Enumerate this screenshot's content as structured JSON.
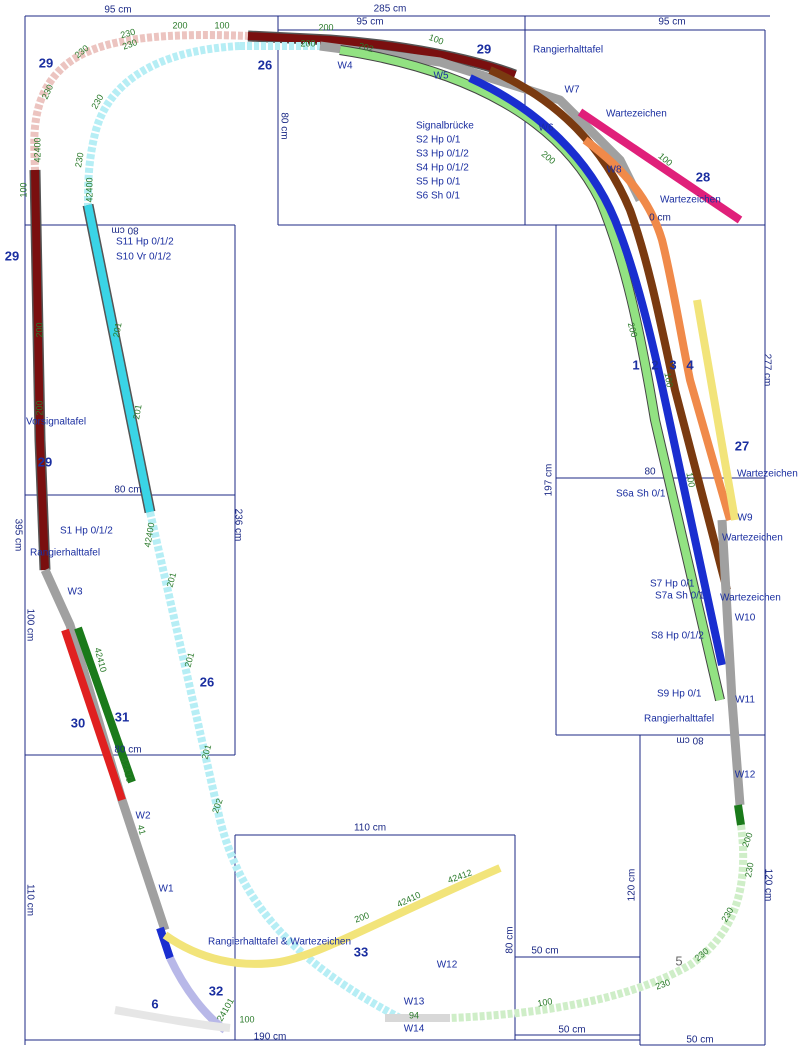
{
  "dimensions": [
    "95 cm",
    "285 cm",
    "95 cm",
    "95 cm",
    "80 cm",
    "80 cm",
    "80 cm",
    "395 cm",
    "100 cm",
    "80 cm",
    "236 cm",
    "110 cm",
    "110 cm",
    "190 cm",
    "50 cm",
    "50 cm",
    "50 cm",
    "80 cm",
    "120 cm",
    "120 cm",
    "80 cm",
    "197 cm",
    "277 cm",
    "80",
    "0 cm"
  ],
  "track_numbers": [
    "29",
    "29",
    "29",
    "29",
    "26",
    "28",
    "1",
    "2",
    "3",
    "4",
    "27",
    "30",
    "31",
    "26",
    "33",
    "32",
    "6",
    "5"
  ],
  "switches": [
    "W4",
    "W5",
    "W6",
    "W7",
    "W8",
    "W9",
    "W10",
    "W11",
    "W12",
    "W3",
    "W2",
    "W1",
    "W12",
    "W13",
    "W14"
  ],
  "signals": [
    "Rangierhalttafel",
    "Wartezeichen",
    "Wartezeichen",
    "Signalbrücke",
    "S2 Hp 0/1",
    "S3 Hp 0/1/2",
    "S4 Hp 0/1/2",
    "S5 Hp 0/1",
    "S6 Sh 0/1",
    "S11 Hp 0/1/2",
    "S10 Vr 0/1/2",
    "Vorsignaltafel",
    "S1 Hp 0/1/2",
    "Rangierhalttafel",
    "Wartezeichen",
    "S6a Sh 0/1",
    "Wartezeichen",
    "S7 Hp 0/1",
    "S7a Sh 0/1",
    "Wartezeichen",
    "S8 Hp 0/1/2",
    "S9 Hp 0/1",
    "Rangierhalttafel",
    "Rangierhalttafel & Wartezeichen"
  ],
  "pieces": [
    "100",
    "200",
    "230",
    "230",
    "230",
    "42400",
    "100",
    "200",
    "200",
    "230",
    "230",
    "230",
    "42400",
    "201",
    "201",
    "42400",
    "201",
    "201",
    "201",
    "202",
    "200",
    "200",
    "202",
    "100",
    "200",
    "200",
    "100",
    "100",
    "100",
    "200",
    "230",
    "230",
    "230",
    "230",
    "100",
    "94",
    "100",
    "200",
    "42410",
    "42412",
    "42410",
    "42410",
    "41",
    "24101"
  ]
}
